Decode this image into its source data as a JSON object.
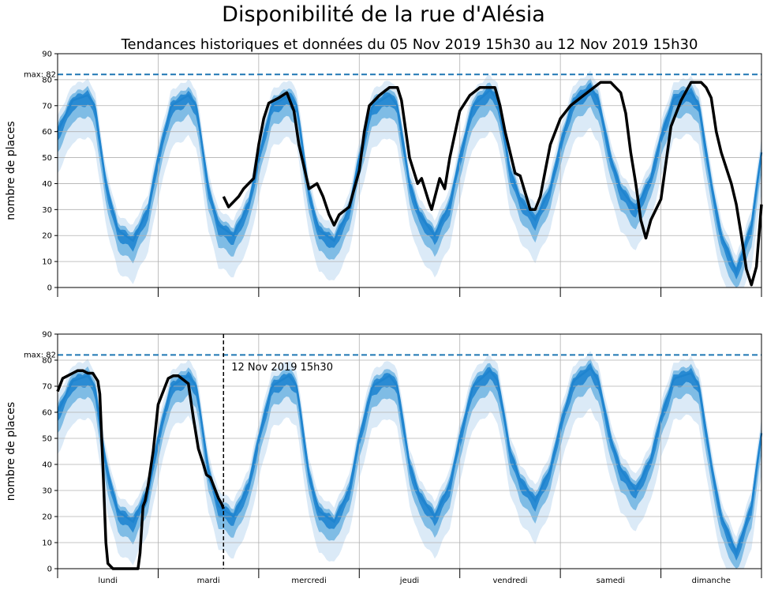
{
  "figure": {
    "suptitle": "Disponibilité de la rue d'Alésia"
  },
  "colors": {
    "band_light": "#dbeaf7",
    "band_mid": "#7fbce5",
    "band_dark": "#2a8bd3",
    "median": "#1f84cf",
    "observed": "#000000",
    "max_line": "#1f77b4",
    "grid": "#b0b0b0"
  },
  "chart_data": [
    {
      "type": "area",
      "title": "Tendances historiques et données du 05 Nov 2019 15h30 au 12 Nov 2019 15h30",
      "xlabel": "",
      "ylabel": "nombre de places",
      "ylim": [
        0,
        90
      ],
      "yticks": [
        0,
        10,
        20,
        30,
        40,
        50,
        60,
        70,
        80,
        90
      ],
      "xlim": [
        0,
        7
      ],
      "grid": true,
      "max_line": {
        "value": 82,
        "label": "max: 82"
      },
      "series": [
        {
          "name": "",
          "kind": "median",
          "x": [
            0,
            0.15,
            0.3,
            0.37,
            0.48,
            0.6,
            0.75,
            0.9,
            1.0,
            1.13,
            1.3,
            1.38,
            1.5,
            1.6,
            1.75,
            1.9,
            2.0,
            2.13,
            2.3,
            2.38,
            2.5,
            2.6,
            2.75,
            2.9,
            3.0,
            3.13,
            3.3,
            3.38,
            3.5,
            3.6,
            3.75,
            3.9,
            4.0,
            4.13,
            4.3,
            4.38,
            4.5,
            4.6,
            4.75,
            4.9,
            5.0,
            5.13,
            5.3,
            5.38,
            5.5,
            5.6,
            5.75,
            5.9,
            6.0,
            6.13,
            6.3,
            6.38,
            6.5,
            6.6,
            6.75,
            6.9,
            7.0
          ],
          "values": [
            60,
            72,
            74,
            70,
            40,
            22,
            18,
            30,
            50,
            70,
            74,
            70,
            38,
            24,
            20,
            32,
            50,
            70,
            74,
            70,
            36,
            22,
            18,
            30,
            50,
            70,
            74,
            70,
            40,
            28,
            20,
            32,
            50,
            70,
            76,
            72,
            45,
            34,
            26,
            38,
            55,
            72,
            77,
            72,
            50,
            38,
            30,
            42,
            58,
            73,
            75,
            70,
            40,
            20,
            6,
            24,
            52
          ]
        },
        {
          "name": "",
          "kind": "observed",
          "x": [
            1.65,
            1.7,
            1.75,
            1.8,
            1.85,
            1.9,
            1.95,
            2.0,
            2.05,
            2.1,
            2.2,
            2.28,
            2.35,
            2.4,
            2.5,
            2.58,
            2.64,
            2.7,
            2.75,
            2.8,
            2.9,
            2.95,
            3.0,
            3.05,
            3.1,
            3.2,
            3.3,
            3.38,
            3.42,
            3.5,
            3.58,
            3.62,
            3.7,
            3.72,
            3.8,
            3.85,
            3.9,
            4.0,
            4.1,
            4.2,
            4.35,
            4.4,
            4.45,
            4.55,
            4.6,
            4.7,
            4.75,
            4.8,
            4.85,
            4.9,
            5.0,
            5.1,
            5.2,
            5.3,
            5.4,
            5.5,
            5.6,
            5.65,
            5.7,
            5.75,
            5.8,
            5.85,
            5.9,
            6.0,
            6.1,
            6.2,
            6.3,
            6.4,
            6.45,
            6.5,
            6.55,
            6.6,
            6.7,
            6.75,
            6.8,
            6.85,
            6.9,
            6.95,
            7.0
          ],
          "values": [
            35,
            31,
            33,
            35,
            38,
            40,
            42,
            55,
            65,
            71,
            73,
            75,
            68,
            55,
            38,
            40,
            35,
            28,
            24,
            28,
            31,
            38,
            45,
            60,
            70,
            74,
            77,
            77,
            72,
            50,
            40,
            42,
            32,
            30,
            42,
            38,
            50,
            68,
            74,
            77,
            77,
            70,
            60,
            44,
            43,
            30,
            30,
            35,
            45,
            55,
            65,
            70,
            73,
            76,
            79,
            79,
            75,
            67,
            52,
            40,
            26,
            19,
            26,
            34,
            62,
            72,
            79,
            79,
            77,
            73,
            60,
            52,
            40,
            32,
            20,
            7,
            1,
            8,
            32
          ]
        }
      ]
    },
    {
      "type": "area",
      "title": "",
      "xlabel": "",
      "ylabel": "nombre de places",
      "ylim": [
        0,
        90
      ],
      "yticks": [
        0,
        10,
        20,
        30,
        40,
        50,
        60,
        70,
        80,
        90
      ],
      "xlim": [
        0,
        7
      ],
      "grid": true,
      "max_line": {
        "value": 82,
        "label": "max: 82"
      },
      "x_categories": [
        "lundi",
        "mardi",
        "mercredi",
        "jeudi",
        "vendredi",
        "samedi",
        "dimanche"
      ],
      "now_marker": {
        "x": 1.65,
        "label": "12 Nov 2019 15h30"
      },
      "series": [
        {
          "name": "",
          "kind": "median",
          "x": [
            0,
            0.15,
            0.3,
            0.37,
            0.48,
            0.6,
            0.75,
            0.9,
            1.0,
            1.13,
            1.3,
            1.38,
            1.5,
            1.6,
            1.75,
            1.9,
            2.0,
            2.13,
            2.3,
            2.38,
            2.5,
            2.6,
            2.75,
            2.9,
            3.0,
            3.13,
            3.3,
            3.38,
            3.5,
            3.6,
            3.75,
            3.9,
            4.0,
            4.13,
            4.3,
            4.38,
            4.5,
            4.6,
            4.75,
            4.9,
            5.0,
            5.13,
            5.3,
            5.38,
            5.5,
            5.6,
            5.75,
            5.9,
            6.0,
            6.13,
            6.3,
            6.38,
            6.5,
            6.6,
            6.75,
            6.9,
            7.0
          ],
          "values": [
            60,
            72,
            74,
            70,
            40,
            22,
            18,
            30,
            50,
            70,
            74,
            70,
            38,
            24,
            20,
            32,
            50,
            70,
            74,
            70,
            36,
            22,
            18,
            30,
            50,
            70,
            74,
            70,
            40,
            28,
            20,
            32,
            50,
            70,
            76,
            72,
            45,
            34,
            26,
            38,
            55,
            72,
            77,
            72,
            50,
            38,
            30,
            42,
            58,
            73,
            75,
            70,
            40,
            20,
            6,
            24,
            52
          ]
        },
        {
          "name": "",
          "kind": "observed",
          "x": [
            0,
            0.05,
            0.1,
            0.15,
            0.2,
            0.25,
            0.3,
            0.35,
            0.4,
            0.42,
            0.45,
            0.48,
            0.5,
            0.55,
            0.6,
            0.8,
            0.82,
            0.85,
            0.87,
            0.9,
            0.95,
            1.0,
            1.1,
            1.15,
            1.2,
            1.3,
            1.35,
            1.4,
            1.45,
            1.48,
            1.52,
            1.55,
            1.6,
            1.63,
            1.65
          ],
          "values": [
            68,
            73,
            74,
            75,
            76,
            76,
            75,
            75,
            72,
            67,
            40,
            10,
            2,
            0,
            0,
            0,
            6,
            24,
            26,
            32,
            45,
            63,
            73,
            74,
            74,
            71,
            58,
            46,
            40,
            36,
            35,
            32,
            27,
            25,
            23
          ]
        }
      ]
    }
  ]
}
